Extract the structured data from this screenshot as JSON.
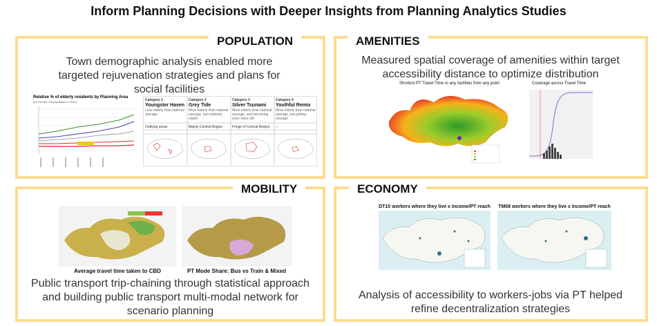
{
  "title": "Inform Planning Decisions with Deeper Insights from Planning Analytics Studies",
  "panels": [
    {
      "heading": "POPULATION",
      "description": "Town demographic analysis enabled more targeted rejuvenation strategies and plans for social facilities",
      "figure": {
        "chart_title": "Relative % of elderly residents by Planning Area",
        "chart_subtitle": "(for PA with >5k population in 2015)",
        "categories": [
          {
            "label": "Category 1",
            "name": "Youngster Haven",
            "description": "Less elderly than national average",
            "region": "Outlying areas"
          },
          {
            "label": "Category 2",
            "name": "Grey Tide",
            "description": "More elderly than national average, but relatively stable",
            "region": "Mainly Central Region"
          },
          {
            "label": "Category 3",
            "name": "Silver Tsunami",
            "description": "More elderly than national average, and becoming even more old",
            "region": "Fringe of Central Region"
          },
          {
            "label": "Category 4",
            "name": "Youthful Remix",
            "description": "More elderly than national average, but getting younger",
            "region": "--"
          }
        ]
      }
    },
    {
      "heading": "AMENITIES",
      "description": "Measured spatial coverage of amenities within target accessibility distance to optimize distribution",
      "figures": [
        "Shortest PT Travel Time to any facilities from any point",
        "Coverage across Travel Time"
      ]
    },
    {
      "heading": "MOBILITY",
      "description": "Public transport trip-chaining through statistical approach and building public transport multi-modal network for scenario planning",
      "figures": [
        "Average travel time taken to CBD",
        "PT Mode Share: Bus vs Train & Mixed"
      ]
    },
    {
      "heading": "ECONOMY",
      "description": "Analysis of accessibility to workers-jobs via PT helped refine decentralization strategies",
      "figures": [
        "DT15 workers where they live x Income/PT reach",
        "TM08 workers where they live x Income/PT reach"
      ]
    }
  ]
}
